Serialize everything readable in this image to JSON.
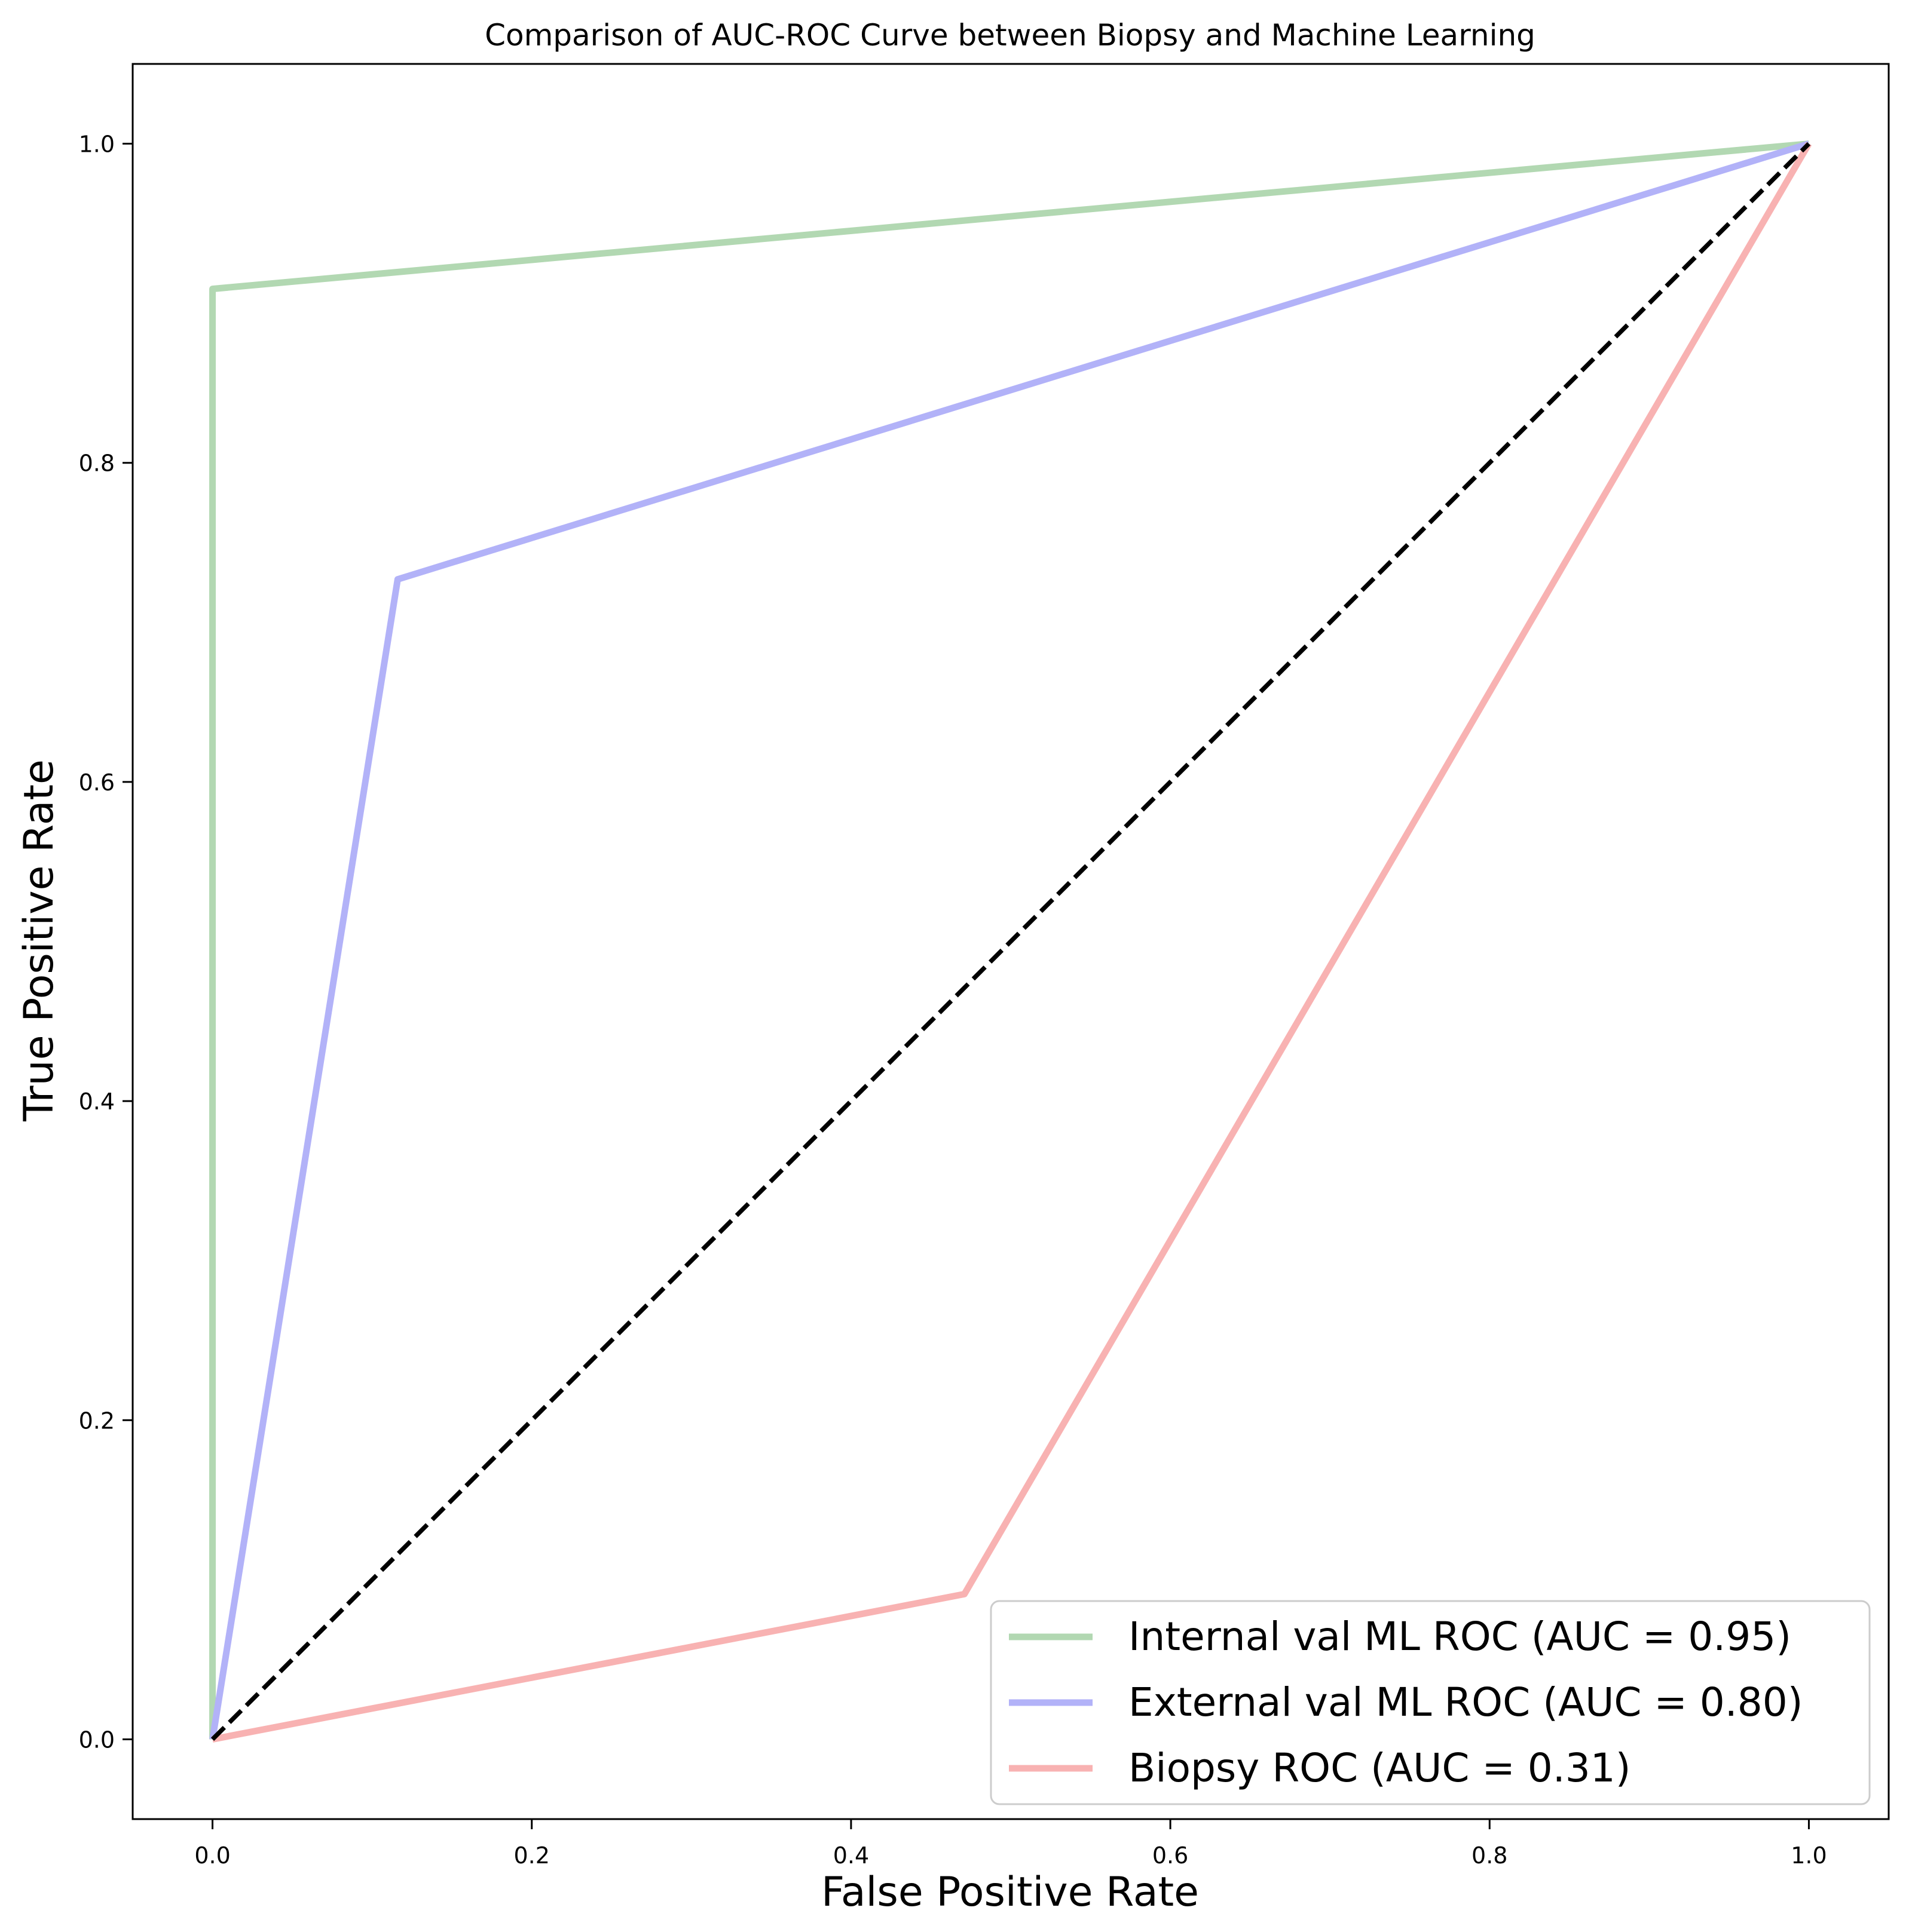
{
  "chart_data": {
    "type": "line",
    "title": "Comparison of AUC-ROC Curve between Biopsy and Machine Learning",
    "xlabel": "False Positive Rate",
    "ylabel": "True Positive Rate",
    "xlim": [
      -0.05,
      1.05
    ],
    "ylim": [
      -0.05,
      1.05
    ],
    "xticks": [
      0.0,
      0.2,
      0.4,
      0.6,
      0.8,
      1.0
    ],
    "xtick_labels": [
      "0.0",
      "0.2",
      "0.4",
      "0.6",
      "0.8",
      "1.0"
    ],
    "yticks": [
      0.0,
      0.2,
      0.4,
      0.6,
      0.8,
      1.0
    ],
    "ytick_labels": [
      "0.0",
      "0.2",
      "0.4",
      "0.6",
      "0.8",
      "1.0"
    ],
    "grid": false,
    "legend_position": "lower-right",
    "series": [
      {
        "name": "Internal val ML ROC (AUC = 0.95)",
        "color": "#b2d8b2",
        "x": [
          0.0,
          0.0,
          1.0
        ],
        "y": [
          0.0,
          0.909,
          1.0
        ]
      },
      {
        "name": "External val ML ROC (AUC = 0.80)",
        "color": "#b2b2f8",
        "x": [
          0.0,
          0.116,
          1.0
        ],
        "y": [
          0.0,
          0.727,
          1.0
        ]
      },
      {
        "name": "Biopsy ROC (AUC = 0.31)",
        "color": "#f8b2b2",
        "x": [
          0.0,
          0.471,
          1.0
        ],
        "y": [
          0.0,
          0.091,
          1.0
        ]
      }
    ],
    "reference_line": {
      "x": [
        0.0,
        1.0
      ],
      "y": [
        0.0,
        1.0
      ],
      "color": "#000000",
      "style": "dashed"
    }
  }
}
